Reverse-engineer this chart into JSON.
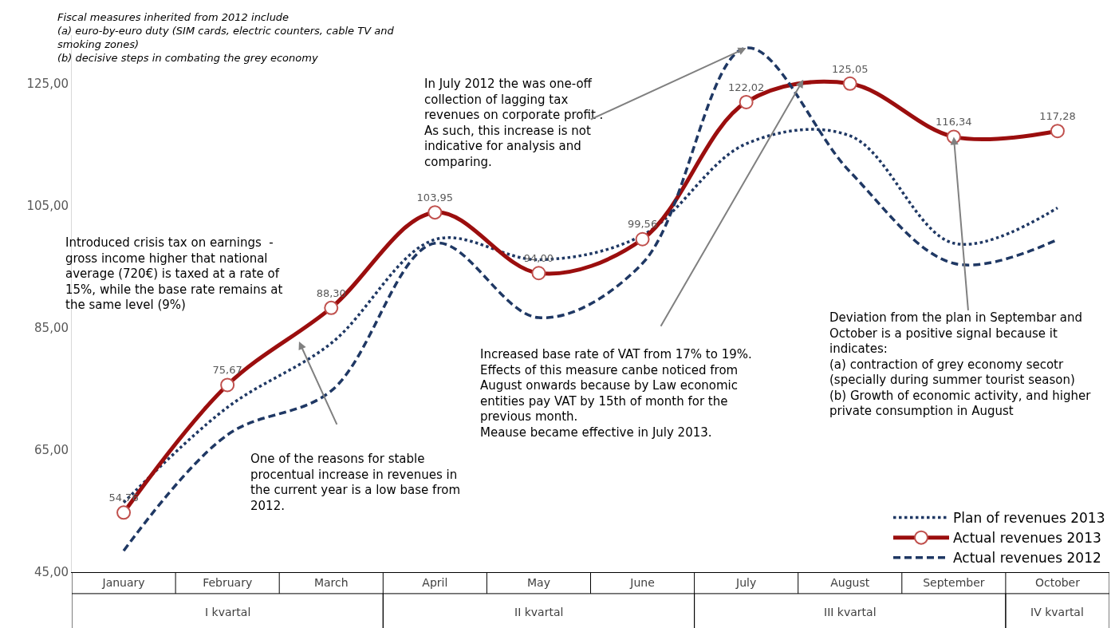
{
  "chart_data": {
    "type": "line",
    "categories": [
      "January",
      "February",
      "March",
      "April",
      "May",
      "June",
      "July",
      "August",
      "September",
      "October"
    ],
    "series": [
      {
        "name": "Plan of revenues 2013",
        "color": "#1f3864",
        "line_style": "dotted",
        "marker": "none",
        "values": [
          56.4,
          72.0,
          82.5,
          99.5,
          96.2,
          100.2,
          115.2,
          116.5,
          98.9,
          104.7
        ]
      },
      {
        "name": "Actual revenues 2013",
        "color": "#9b0e0e",
        "line_style": "solid",
        "marker": "circle",
        "values": [
          54.76,
          75.67,
          88.3,
          103.95,
          94.0,
          99.56,
          122.02,
          125.05,
          116.34,
          117.28
        ],
        "value_labels": [
          "54,76",
          "75,67",
          "88,30",
          "103,95",
          "94,00",
          "99,56",
          "122,02",
          "125,05",
          "116,34",
          "117,28"
        ]
      },
      {
        "name": "Actual revenues 2012",
        "color": "#1f3864",
        "line_style": "dashed",
        "marker": "none",
        "values": [
          48.5,
          67.5,
          74.7,
          98.9,
          86.7,
          95.6,
          130.9,
          110.6,
          95.6,
          99.5
        ]
      }
    ],
    "ylim": [
      45,
      133
    ],
    "yticks": [
      {
        "value": 45,
        "label": "45,00"
      },
      {
        "value": 65,
        "label": "65,00"
      },
      {
        "value": 85,
        "label": "85,00"
      },
      {
        "value": 105,
        "label": "105,00"
      },
      {
        "value": 125,
        "label": "125,00"
      }
    ],
    "legend": "bottom right",
    "annotations": [
      "Fiscal measures inherited from 2012 include\n(a) euro-by-euro duty (SIM cards, electric counters, cable TV and\nsmoking zones)\n(b) decisive steps in combating the grey economy",
      "Introduced crisis tax on earnings  -\ngross income higher that national\naverage (720€) is taxed at a rate of\n15%, while the base rate remains at\nthe same level (9%)",
      "One of the reasons for stable\nprocentual increase in revenues in\nthe current year is a low base from\n2012.",
      {
        "text": "In July 2012 the was one-off\ncollection of lagging tax\nrevenues on corporate profit .\nAs such, this increase is not\nindicative for analysis and\ncomparing.",
        "x": "July",
        "y": 130.9
      },
      "Increased base rate of VAT from 17% to 19%.\nEffects of this measure canbe noticed from\nAugust onwards because by Law economic\nentities pay VAT by 15th of month for the\nprevious month.\nMeause became effective in July 2013.",
      {
        "text": "Deviation from the plan in Septembar and\nOctober is a positive signal because it\nindicates:\n(a) contraction of grey economy secotr\n(specially during summer tourist season)\n(b) Growth of economic activity, and higher\nprivate consumption in August",
        "x": "September",
        "y": 116.34
      },
      "I kvartal",
      "II kvartal",
      "III kvartal",
      "IV kvartal"
    ]
  }
}
